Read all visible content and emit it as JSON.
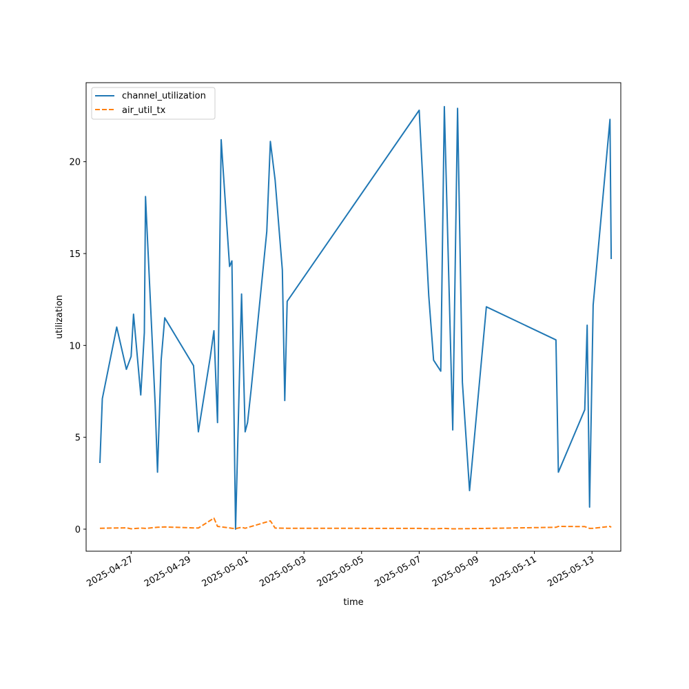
{
  "chart_data": {
    "type": "line",
    "title": "",
    "xlabel": "time",
    "ylabel": "utilization",
    "xlim": [
      "2025-04-25 10:30",
      "2025-05-14 00:00"
    ],
    "ylim": [
      -1.2,
      24.3
    ],
    "grid": false,
    "legend_position": "top-left",
    "xticks": [
      "2025-04-27",
      "2025-04-29",
      "2025-05-01",
      "2025-05-03",
      "2025-05-05",
      "2025-05-07",
      "2025-05-09",
      "2025-05-11",
      "2025-05-13"
    ],
    "yticks": [
      0,
      5,
      10,
      15,
      20
    ],
    "series": [
      {
        "name": "channel_utilization",
        "color": "#1f77b4",
        "dash": "solid",
        "points": [
          [
            "2025-04-25 22:00",
            3.6
          ],
          [
            "2025-04-26 00:00",
            7.1
          ],
          [
            "2025-04-26 12:00",
            11.0
          ],
          [
            "2025-04-26 20:00",
            8.7
          ],
          [
            "2025-04-27 00:00",
            9.4
          ],
          [
            "2025-04-27 02:00",
            11.7
          ],
          [
            "2025-04-27 08:00",
            7.3
          ],
          [
            "2025-04-27 11:00",
            10.7
          ],
          [
            "2025-04-27 12:00",
            18.1
          ],
          [
            "2025-04-27 20:00",
            6.8
          ],
          [
            "2025-04-27 22:00",
            3.1
          ],
          [
            "2025-04-28 01:00",
            9.2
          ],
          [
            "2025-04-28 04:00",
            11.5
          ],
          [
            "2025-04-29 04:00",
            8.9
          ],
          [
            "2025-04-29 08:00",
            5.3
          ],
          [
            "2025-04-29 18:00",
            9.4
          ],
          [
            "2025-04-29 21:00",
            10.8
          ],
          [
            "2025-04-30 00:00",
            5.8
          ],
          [
            "2025-04-30 03:00",
            21.2
          ],
          [
            "2025-04-30 10:00",
            14.3
          ],
          [
            "2025-04-30 12:00",
            14.6
          ],
          [
            "2025-04-30 15:00",
            0.0
          ],
          [
            "2025-04-30 20:00",
            12.8
          ],
          [
            "2025-04-30 23:00",
            5.3
          ],
          [
            "2025-05-01 01:00",
            5.8
          ],
          [
            "2025-05-01 04:00",
            7.6
          ],
          [
            "2025-05-01 17:00",
            16.2
          ],
          [
            "2025-05-01 20:00",
            21.1
          ],
          [
            "2025-05-02 00:00",
            19.0
          ],
          [
            "2025-05-02 06:00",
            14.1
          ],
          [
            "2025-05-02 08:00",
            7.0
          ],
          [
            "2025-05-02 10:00",
            12.4
          ],
          [
            "2025-05-07 00:00",
            22.8
          ],
          [
            "2025-05-07 08:00",
            12.7
          ],
          [
            "2025-05-07 12:00",
            9.2
          ],
          [
            "2025-05-07 18:00",
            8.6
          ],
          [
            "2025-05-07 21:00",
            23.0
          ],
          [
            "2025-05-08 04:00",
            5.4
          ],
          [
            "2025-05-08 08:00",
            22.9
          ],
          [
            "2025-05-08 12:00",
            8.0
          ],
          [
            "2025-05-08 18:00",
            2.1
          ],
          [
            "2025-05-09 08:00",
            12.1
          ],
          [
            "2025-05-11 18:00",
            10.3
          ],
          [
            "2025-05-11 20:00",
            3.1
          ],
          [
            "2025-05-12 18:00",
            6.5
          ],
          [
            "2025-05-12 20:00",
            11.1
          ],
          [
            "2025-05-12 22:00",
            1.2
          ],
          [
            "2025-05-13 01:00",
            12.2
          ],
          [
            "2025-05-13 15:00",
            22.3
          ],
          [
            "2025-05-13 16:00",
            14.7
          ]
        ]
      },
      {
        "name": "air_util_tx",
        "color": "#ff7f0e",
        "dash": "dashed",
        "points": [
          [
            "2025-04-25 22:00",
            0.05
          ],
          [
            "2025-04-26 20:00",
            0.07
          ],
          [
            "2025-04-27 00:00",
            0.02
          ],
          [
            "2025-04-27 08:00",
            0.06
          ],
          [
            "2025-04-27 12:00",
            0.04
          ],
          [
            "2025-04-27 22:00",
            0.1
          ],
          [
            "2025-04-28 04:00",
            0.12
          ],
          [
            "2025-04-29 08:00",
            0.06
          ],
          [
            "2025-04-29 21:00",
            0.6
          ],
          [
            "2025-04-30 00:00",
            0.15
          ],
          [
            "2025-04-30 12:00",
            0.05
          ],
          [
            "2025-04-30 15:00",
            0.03
          ],
          [
            "2025-04-30 20:00",
            0.1
          ],
          [
            "2025-04-30 23:00",
            0.05
          ],
          [
            "2025-05-01 20:00",
            0.45
          ],
          [
            "2025-05-02 00:00",
            0.06
          ],
          [
            "2025-05-02 10:00",
            0.05
          ],
          [
            "2025-05-07 00:00",
            0.04
          ],
          [
            "2025-05-07 12:00",
            0.02
          ],
          [
            "2025-05-07 21:00",
            0.04
          ],
          [
            "2025-05-08 04:00",
            0.02
          ],
          [
            "2025-05-08 18:00",
            0.03
          ],
          [
            "2025-05-09 08:00",
            0.04
          ],
          [
            "2025-05-11 18:00",
            0.1
          ],
          [
            "2025-05-11 20:00",
            0.15
          ],
          [
            "2025-05-12 18:00",
            0.14
          ],
          [
            "2025-05-12 22:00",
            0.04
          ],
          [
            "2025-05-13 01:00",
            0.05
          ],
          [
            "2025-05-13 15:00",
            0.15
          ],
          [
            "2025-05-13 16:00",
            0.1
          ]
        ]
      }
    ]
  }
}
